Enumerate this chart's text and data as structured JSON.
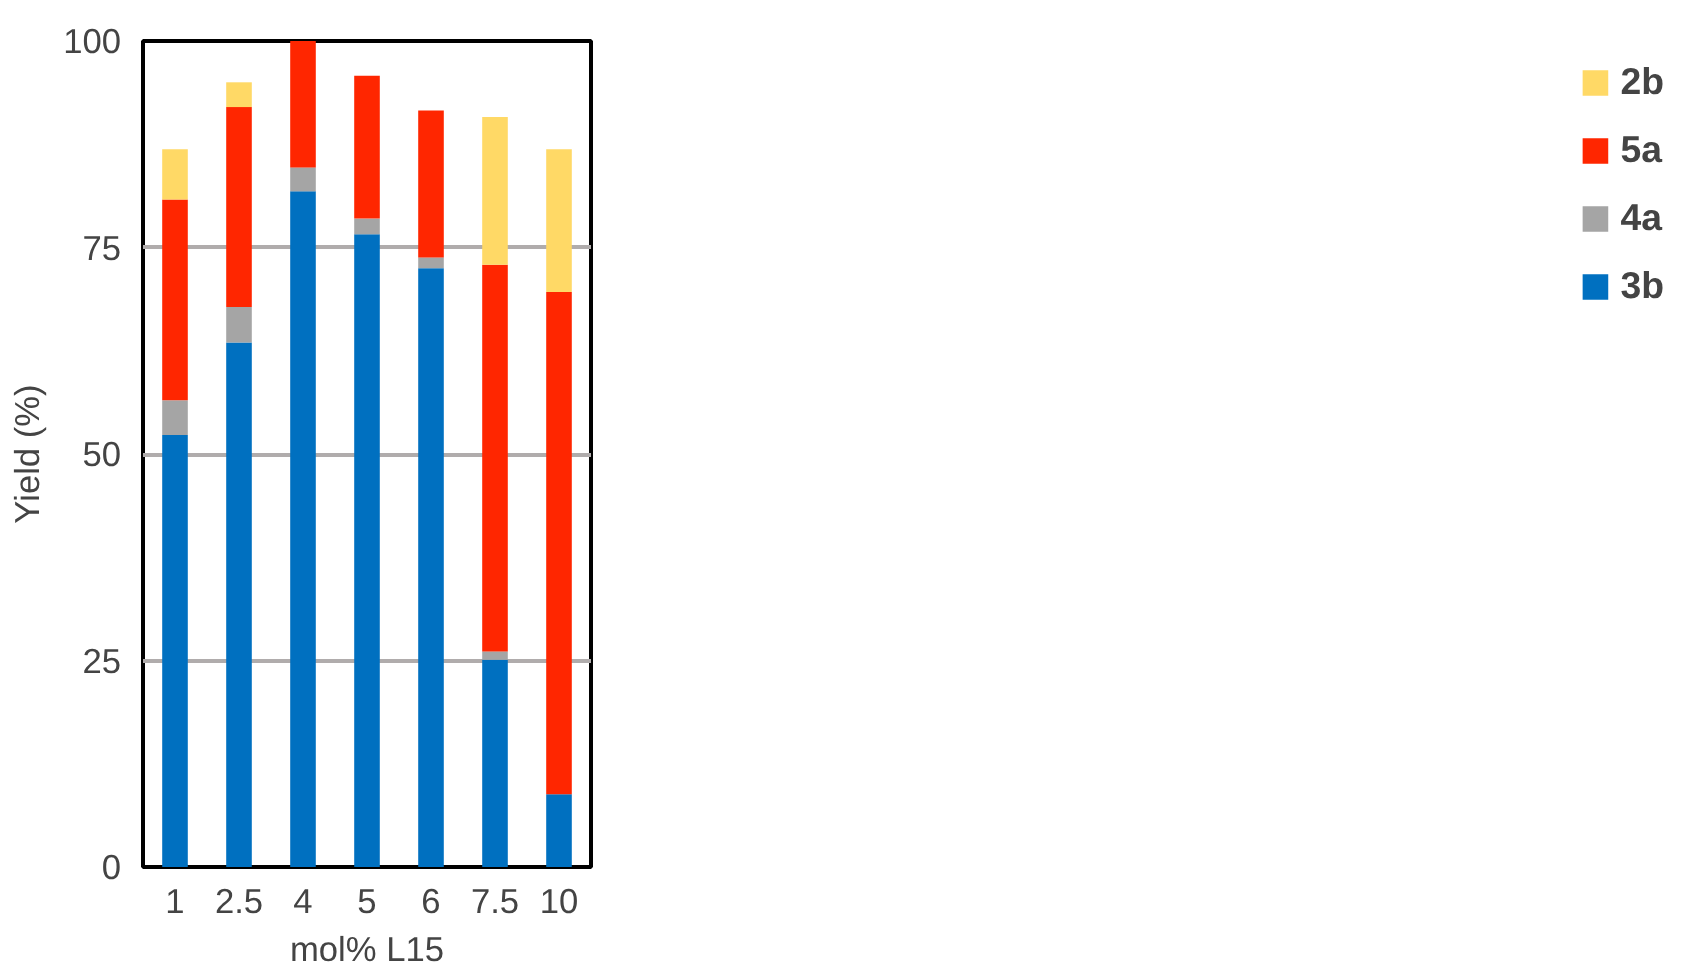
{
  "chart_data": {
    "type": "bar",
    "stacked": true,
    "xlabel": "mol% L15",
    "ylabel": "Yield (%)",
    "categories": [
      "1",
      "2.5",
      "4",
      "5",
      "6",
      "7.5",
      "10"
    ],
    "series": [
      {
        "name": "3b",
        "color": "#0070c0",
        "values": [
          52.3,
          63.5,
          81.8,
          76.6,
          72.5,
          25.1,
          8.8
        ]
      },
      {
        "name": "4a",
        "color": "#a5a5a5",
        "values": [
          4.2,
          4.3,
          2.9,
          1.9,
          1.3,
          1.0,
          0
        ]
      },
      {
        "name": "5a",
        "color": "#ff2600",
        "values": [
          24.3,
          24.2,
          15.3,
          17.3,
          17.8,
          46.8,
          60.8
        ]
      },
      {
        "name": "2b",
        "color": "#ffd966",
        "values": [
          6.1,
          3.0,
          0,
          0,
          0,
          17.9,
          17.3
        ]
      }
    ],
    "ylim": [
      0,
      100
    ],
    "yticks": [
      0,
      25,
      50,
      75,
      100
    ],
    "grid": "y",
    "legend": "right"
  }
}
